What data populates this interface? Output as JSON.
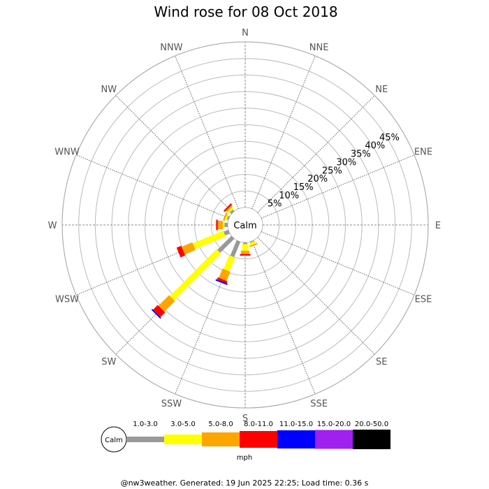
{
  "chart_data": {
    "type": "wind-rose",
    "title": "Wind rose for 08 Oct 2018",
    "directions": [
      "N",
      "NNE",
      "NE",
      "ENE",
      "E",
      "ESE",
      "SE",
      "SSE",
      "S",
      "SSW",
      "SW",
      "WSW",
      "W",
      "WNW",
      "NW",
      "NNW"
    ],
    "radial_ticks": [
      "5%",
      "10%",
      "15%",
      "20%",
      "25%",
      "30%",
      "35%",
      "40%",
      "45%"
    ],
    "radial_max": 50,
    "calm_label": "Calm",
    "unit": "mph",
    "speed_bins": [
      {
        "label": "1.0-3.0",
        "color": "#999999"
      },
      {
        "label": "3.0-5.0",
        "color": "#ffff00"
      },
      {
        "label": "5.0-8.0",
        "color": "#ffa500"
      },
      {
        "label": "8.0-11.0",
        "color": "#ff0000"
      },
      {
        "label": "11.0-15.0",
        "color": "#0000ff"
      },
      {
        "label": "15.0-20.0",
        "color": "#a020f0"
      },
      {
        "label": "20.0-50.0",
        "color": "#000000"
      }
    ],
    "values": {
      "S": [
        0.5,
        2.0,
        1.0,
        0.5,
        0,
        0,
        0
      ],
      "SSE": [
        0.3,
        0.8,
        0.4,
        0,
        0,
        0,
        0
      ],
      "SSW": [
        5.0,
        4.5,
        3.0,
        0.7,
        0.4,
        0,
        0
      ],
      "SW": [
        6.0,
        20.0,
        4.5,
        2.0,
        0.4,
        0,
        0
      ],
      "WSW": [
        1.5,
        10.0,
        3.5,
        1.5,
        0,
        0,
        0
      ],
      "W": [
        1.0,
        0.5,
        1.5,
        0.5,
        0,
        0,
        0
      ],
      "WNW": [
        0.5,
        0.5,
        0.5,
        0,
        0,
        0,
        0
      ],
      "NW": [
        0.7,
        0.7,
        0.5,
        0.5,
        0,
        0,
        0
      ]
    }
  },
  "footer": "@nw3weather. Generated: 19 Jun 2025 22:25; Load time: 0.36 s"
}
